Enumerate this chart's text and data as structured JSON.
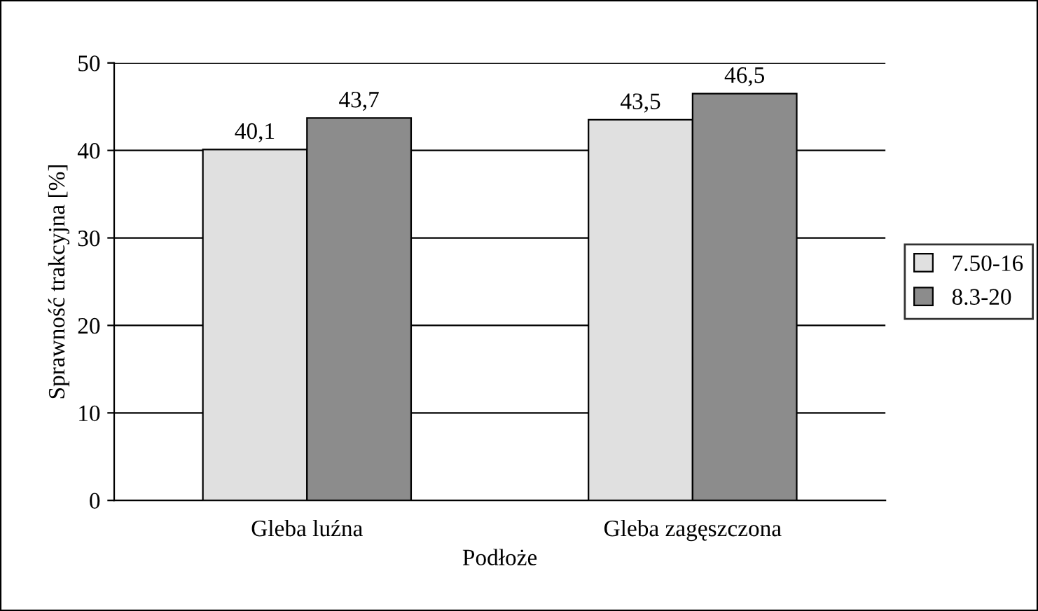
{
  "chart_data": {
    "type": "bar",
    "xlabel": "Podłoże",
    "ylabel": "Sprawność trakcyjna [%]",
    "categories": [
      "Gleba luźna",
      "Gleba zagęszczona"
    ],
    "series": [
      {
        "name": "7.50-16",
        "color": "#e0e0e0",
        "values": [
          40.1,
          43.5
        ],
        "value_labels": [
          "40,1",
          "43,5"
        ]
      },
      {
        "name": "8.3-20",
        "color": "#8c8c8c",
        "values": [
          43.7,
          46.5
        ],
        "value_labels": [
          "43,7",
          "46,5"
        ]
      }
    ],
    "ylim": [
      0,
      50
    ],
    "yticks": [
      0,
      10,
      20,
      30,
      40,
      50
    ],
    "grid": "y",
    "legend": "right"
  }
}
